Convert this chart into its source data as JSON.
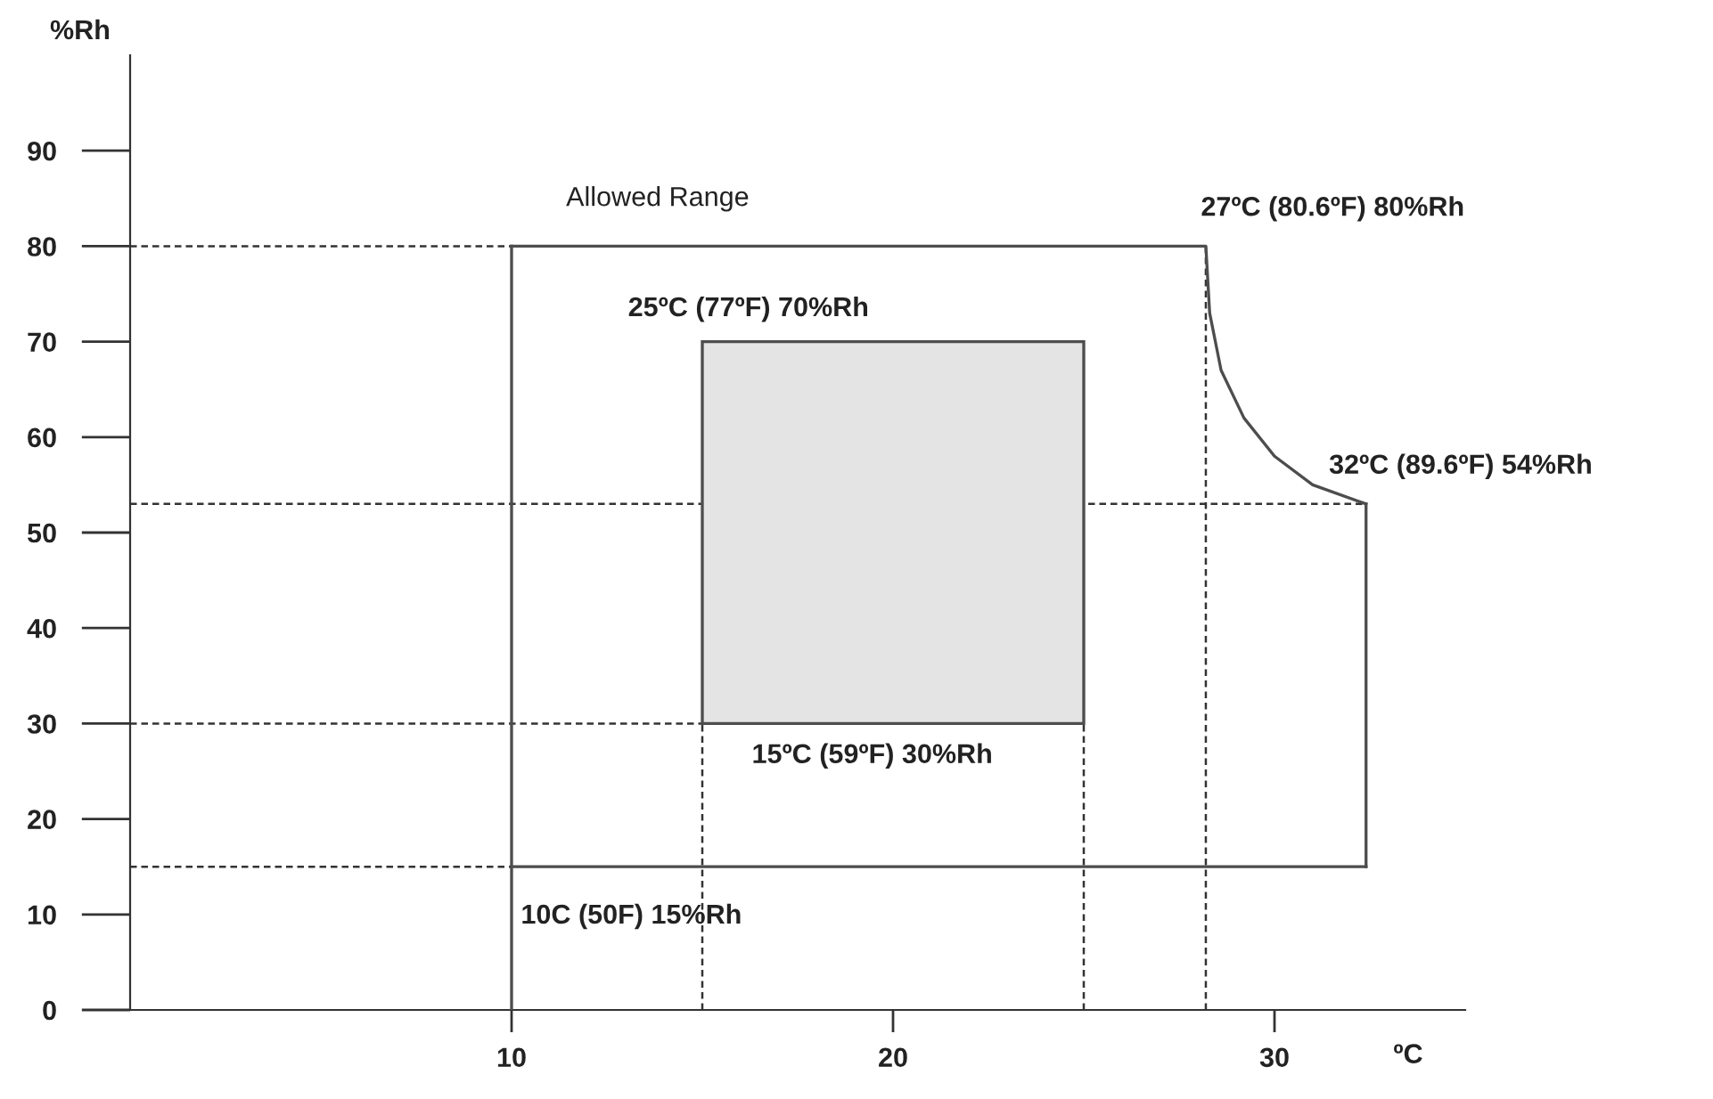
{
  "chart_data": {
    "type": "line",
    "xlabel": "ºC",
    "ylabel": "%Rh",
    "xlim": [
      0,
      35
    ],
    "ylim": [
      0,
      100
    ],
    "xticks": [
      10,
      20,
      30
    ],
    "yticks": [
      0,
      10,
      20,
      30,
      40,
      50,
      60,
      70,
      80,
      90
    ],
    "grid": false,
    "legend": false,
    "marker": "none",
    "series": [
      {
        "color": "#4d4d4d",
        "line_style": "solid",
        "x": [
          10,
          10
        ],
        "values": [
          0,
          80
        ]
      },
      {
        "color": "#4d4d4d",
        "line_style": "solid",
        "x": [
          10,
          28.2,
          28.3,
          28.6,
          29.2,
          30,
          31,
          32.4
        ],
        "values": [
          80,
          80,
          73,
          67,
          62,
          58,
          55,
          53
        ]
      },
      {
        "color": "#4d4d4d",
        "line_style": "solid",
        "x": [
          32.4,
          32.4
        ],
        "values": [
          53,
          15
        ]
      },
      {
        "color": "#4d4d4d",
        "line_style": "solid",
        "x": [
          10,
          32.4
        ],
        "values": [
          15,
          15
        ]
      },
      {
        "type": "area",
        "color": "#e4e4e4",
        "x": [
          15,
          15,
          25,
          25,
          15
        ],
        "values": [
          30,
          70,
          70,
          30,
          30
        ]
      },
      {
        "color": "#333333",
        "line_style": "dashed",
        "x": [
          0,
          10
        ],
        "values": [
          80,
          80
        ]
      },
      {
        "color": "#333333",
        "line_style": "dashed",
        "x": [
          0,
          32.4
        ],
        "values": [
          53,
          53
        ]
      },
      {
        "color": "#333333",
        "line_style": "dashed",
        "x": [
          0,
          15
        ],
        "values": [
          30,
          30
        ]
      },
      {
        "color": "#333333",
        "line_style": "dashed",
        "x": [
          0,
          10
        ],
        "values": [
          15,
          15
        ]
      },
      {
        "color": "#333333",
        "line_style": "dashed",
        "x": [
          15,
          15
        ],
        "values": [
          0,
          30
        ]
      },
      {
        "color": "#333333",
        "line_style": "dashed",
        "x": [
          25,
          25
        ],
        "values": [
          0,
          30
        ]
      },
      {
        "color": "#333333",
        "line_style": "dashed",
        "x": [
          28.2,
          28.2
        ],
        "values": [
          0,
          80
        ]
      }
    ],
    "annotations": [
      "Allowed Range",
      "25ºC (77ºF) 70%Rh",
      "27ºC (80.6ºF) 80%Rh",
      "32ºC (89.6ºF) 54%Rh",
      "15ºC (59ºF) 30%Rh",
      "10C (50F) 15%Rh"
    ]
  }
}
